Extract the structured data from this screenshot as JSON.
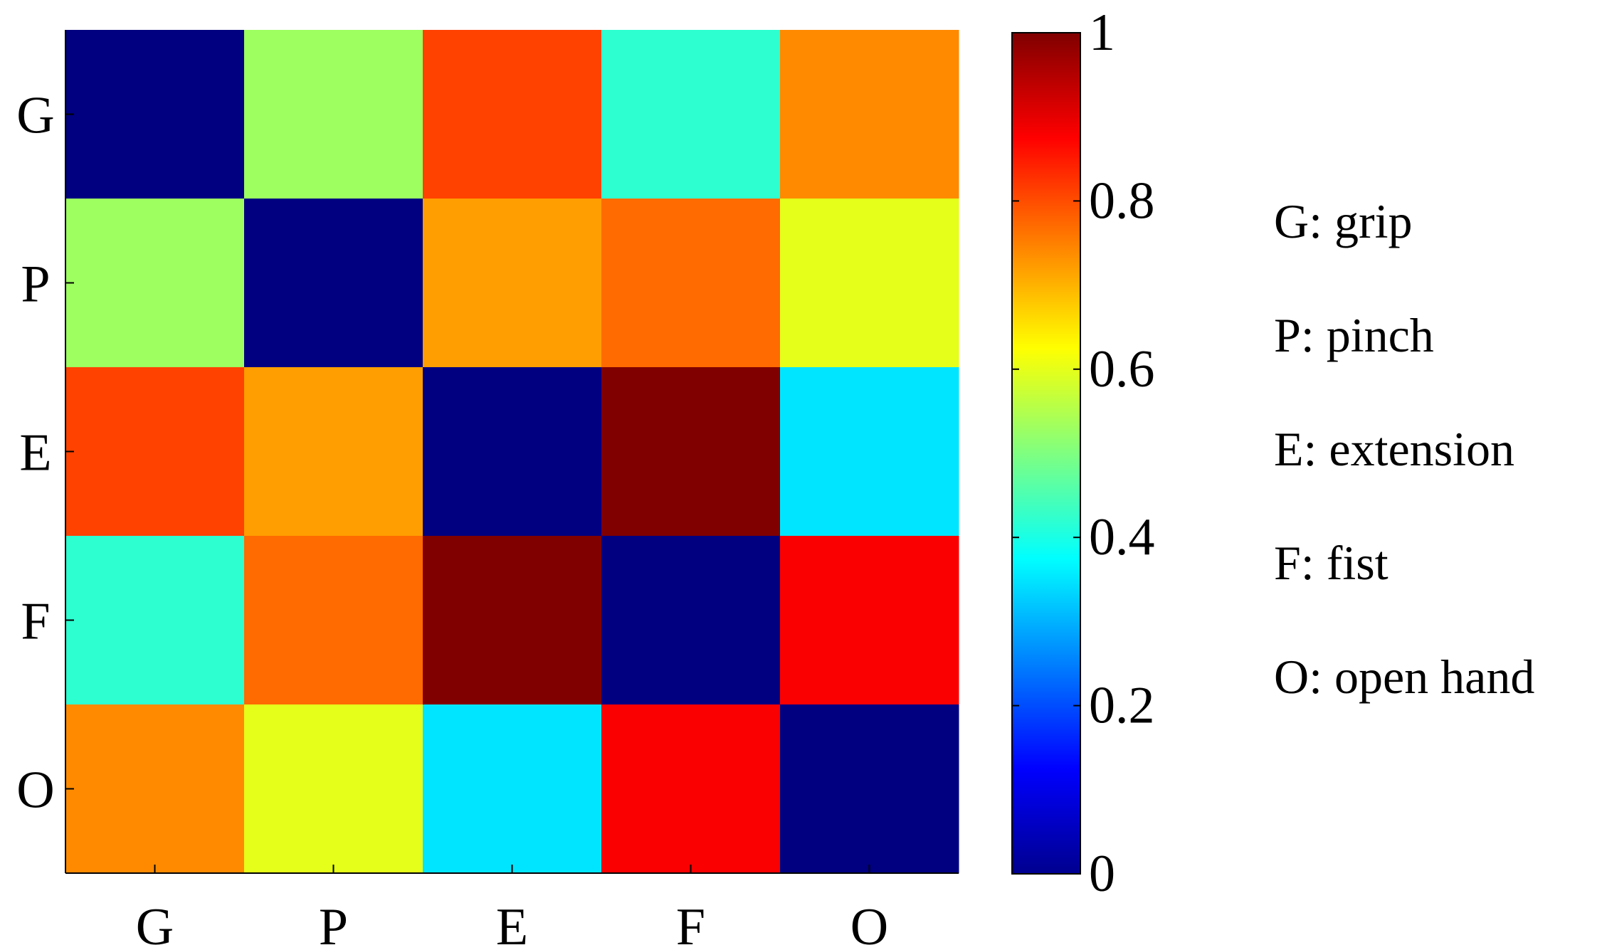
{
  "chart_data": {
    "type": "heatmap",
    "title": "",
    "xlabel": "",
    "ylabel": "",
    "x_categories": [
      "G",
      "P",
      "E",
      "F",
      "O"
    ],
    "y_categories": [
      "G",
      "P",
      "E",
      "F",
      "O"
    ],
    "values": [
      [
        0.0,
        0.53,
        0.81,
        0.42,
        0.74
      ],
      [
        0.53,
        0.0,
        0.72,
        0.77,
        0.6
      ],
      [
        0.81,
        0.72,
        0.0,
        1.0,
        0.35
      ],
      [
        0.42,
        0.77,
        1.0,
        0.0,
        0.88
      ],
      [
        0.74,
        0.6,
        0.35,
        0.88,
        0.0
      ]
    ],
    "colormap": "jet",
    "colorbar": {
      "range": [
        0,
        1
      ],
      "ticks": [
        0,
        0.2,
        0.4,
        0.6,
        0.8,
        1
      ],
      "tick_labels": [
        "0",
        "0.2",
        "0.4",
        "0.6",
        "0.8",
        "1"
      ]
    },
    "grid": false,
    "legend_position": "right",
    "legend": [
      {
        "key": "G",
        "text": "G: grip"
      },
      {
        "key": "P",
        "text": "P: pinch"
      },
      {
        "key": "E",
        "text": "E: extension"
      },
      {
        "key": "F",
        "text": "F: fist"
      },
      {
        "key": "O",
        "text": "O: open hand"
      }
    ]
  }
}
